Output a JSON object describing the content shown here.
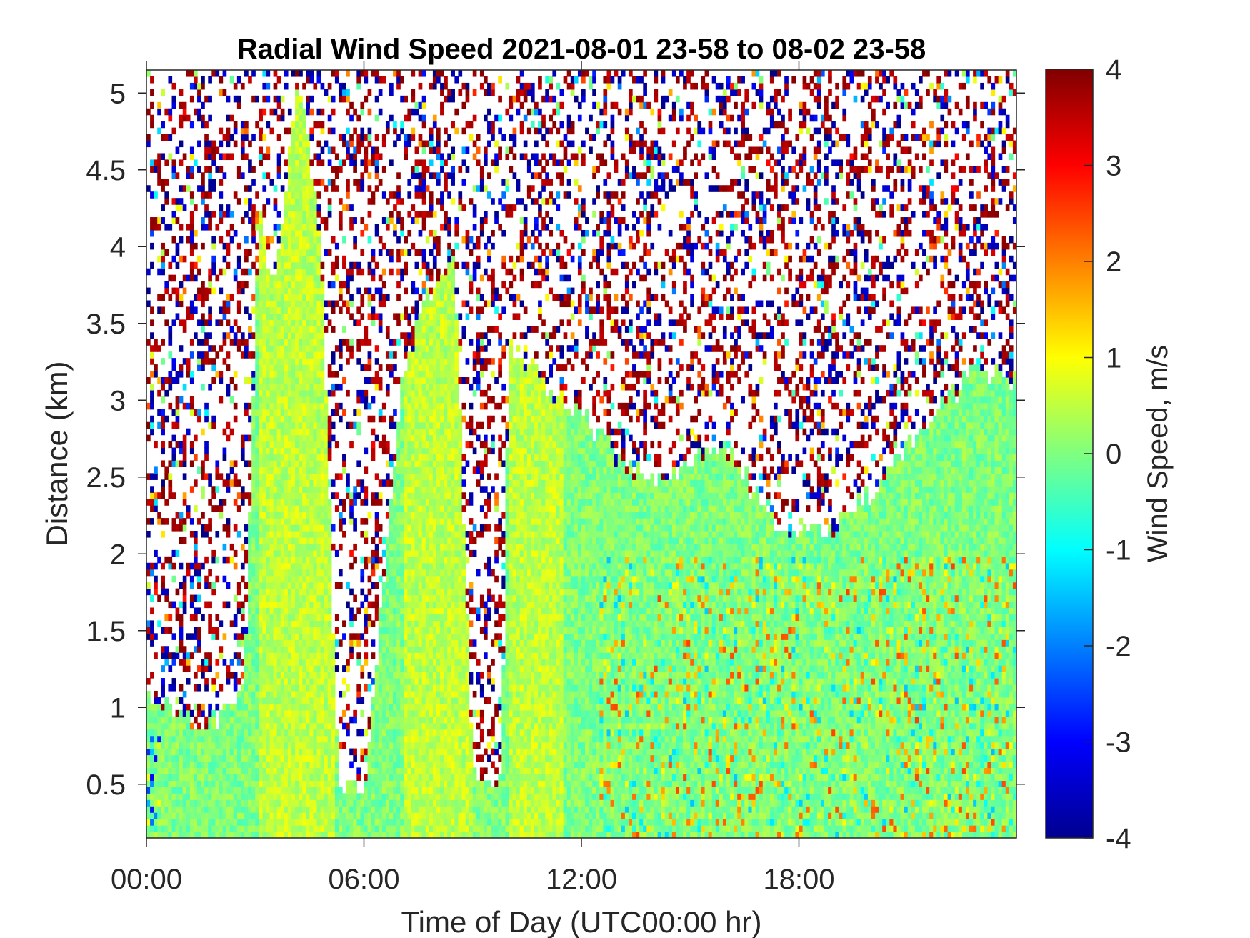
{
  "chart_data": {
    "type": "heatmap",
    "title": "Radial Wind Speed 2021-08-01 23-58 to 08-02 23-58",
    "xlabel": "Time of Day (UTC00:00 hr)",
    "ylabel": "Distance (km)",
    "x_range_hours": [
      0,
      24
    ],
    "y_range_km": [
      0.15,
      5.15
    ],
    "x_ticks": [
      {
        "hours": 0,
        "label": "00:00"
      },
      {
        "hours": 6,
        "label": "06:00"
      },
      {
        "hours": 12,
        "label": "12:00"
      },
      {
        "hours": 18,
        "label": "18:00"
      }
    ],
    "y_ticks": [
      {
        "value": 0.5,
        "label": "0.5"
      },
      {
        "value": 1,
        "label": "1"
      },
      {
        "value": 1.5,
        "label": "1.5"
      },
      {
        "value": 2,
        "label": "2"
      },
      {
        "value": 2.5,
        "label": "2.5"
      },
      {
        "value": 3,
        "label": "3"
      },
      {
        "value": 3.5,
        "label": "3.5"
      },
      {
        "value": 4,
        "label": "4"
      },
      {
        "value": 4.5,
        "label": "4.5"
      },
      {
        "value": 5,
        "label": "5"
      }
    ],
    "colorbar": {
      "label": "Wind Speed, m/s",
      "colormap": "jet",
      "range": [
        -4,
        4
      ],
      "ticks": [
        {
          "value": 4,
          "label": "4"
        },
        {
          "value": 3,
          "label": "3"
        },
        {
          "value": 2,
          "label": "2"
        },
        {
          "value": 1,
          "label": "1"
        },
        {
          "value": 0,
          "label": "0"
        },
        {
          "value": -1,
          "label": "-1"
        },
        {
          "value": -2,
          "label": "-2"
        },
        {
          "value": -3,
          "label": "-3"
        },
        {
          "value": -4,
          "label": "-4"
        }
      ]
    },
    "valid_data_top_km": [
      {
        "hours": 0.0,
        "top": 1.05
      },
      {
        "hours": 1.5,
        "top": 0.9
      },
      {
        "hours": 2.0,
        "top": 0.95
      },
      {
        "hours": 2.7,
        "top": 1.1
      },
      {
        "hours": 3.1,
        "top": 4.3
      },
      {
        "hours": 3.5,
        "top": 3.7
      },
      {
        "hours": 4.2,
        "top": 5.1
      },
      {
        "hours": 4.8,
        "top": 4.1
      },
      {
        "hours": 5.3,
        "top": 0.45
      },
      {
        "hours": 6.0,
        "top": 0.45
      },
      {
        "hours": 7.1,
        "top": 3.2
      },
      {
        "hours": 7.8,
        "top": 3.7
      },
      {
        "hours": 8.5,
        "top": 3.9
      },
      {
        "hours": 9.0,
        "top": 0.55
      },
      {
        "hours": 9.8,
        "top": 0.55
      },
      {
        "hours": 10.0,
        "top": 3.4
      },
      {
        "hours": 11.0,
        "top": 3.1
      },
      {
        "hours": 12.0,
        "top": 2.9
      },
      {
        "hours": 13.0,
        "top": 2.6
      },
      {
        "hours": 14.0,
        "top": 2.5
      },
      {
        "hours": 15.0,
        "top": 2.6
      },
      {
        "hours": 16.0,
        "top": 2.7
      },
      {
        "hours": 17.0,
        "top": 2.3
      },
      {
        "hours": 18.0,
        "top": 2.1
      },
      {
        "hours": 19.0,
        "top": 2.2
      },
      {
        "hours": 20.0,
        "top": 2.4
      },
      {
        "hours": 21.0,
        "top": 2.7
      },
      {
        "hours": 22.0,
        "top": 3.0
      },
      {
        "hours": 23.0,
        "top": 3.2
      },
      {
        "hours": 24.0,
        "top": 3.1
      }
    ],
    "typical_values_m_s": {
      "main_body": 0.0,
      "high_windows_03_05_and_07_09_hr": 0.5,
      "afternoon_mixed": [
        -1.5,
        2.5
      ],
      "sparse_noise_above": [
        -4,
        4
      ]
    }
  }
}
